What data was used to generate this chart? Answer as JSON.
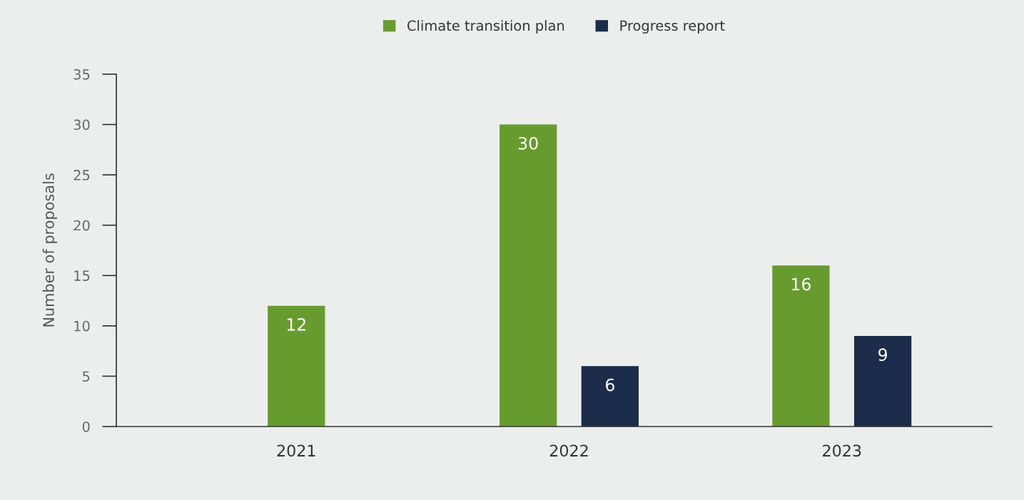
{
  "chart_data": {
    "type": "bar",
    "ylabel": "Number of proposals",
    "categories": [
      "2021",
      "2022",
      "2023"
    ],
    "series": [
      {
        "name": "Climate transition plan",
        "color": "#689b2e",
        "values": [
          12,
          30,
          16
        ]
      },
      {
        "name": "Progress report",
        "color": "#1b2d4a",
        "values": [
          null,
          6,
          9
        ]
      }
    ],
    "ylim": [
      0,
      35
    ],
    "yticks": [
      0,
      5,
      10,
      15,
      20,
      25,
      30,
      35
    ],
    "grid": false,
    "legend": "top",
    "data_labels": true
  }
}
